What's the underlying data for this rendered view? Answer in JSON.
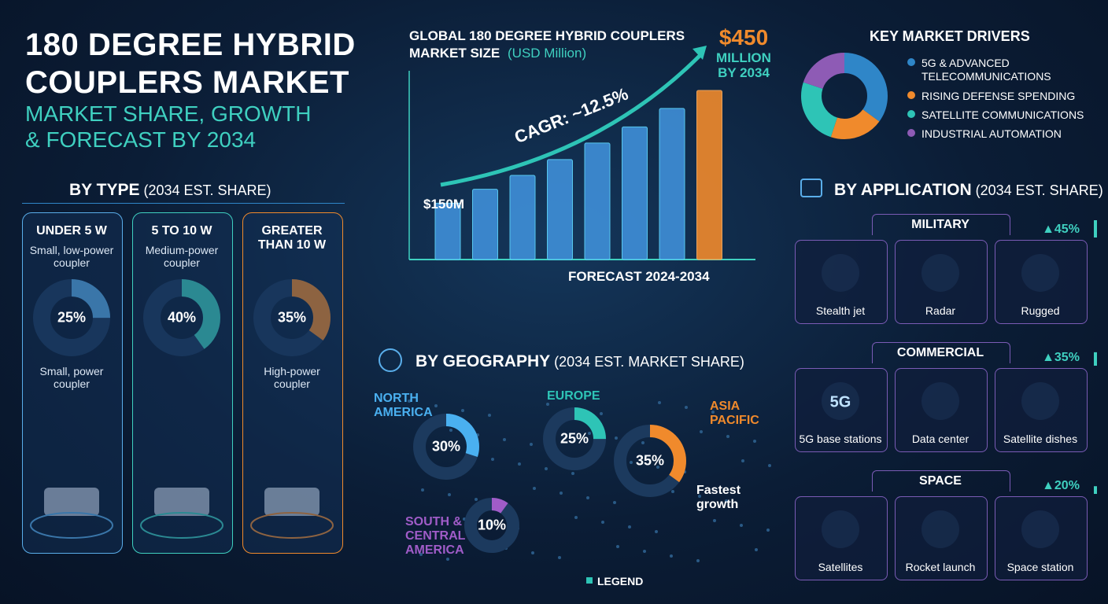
{
  "header": {
    "title_lines": [
      "180 DEGREE HYBRID",
      "COUPLERS MARKET"
    ],
    "subtitle_lines": [
      "MARKET SHARE, GROWTH",
      "& FORECAST BY 2034"
    ]
  },
  "market_size": {
    "title_lines": [
      "GLOBAL 180 DEGREE HYBRID COUPLERS",
      "MARKET SIZE"
    ],
    "unit": "(USD Million)",
    "cagr": "CAGR: ~12.5%",
    "start_label": "$150M",
    "end_label_lines": [
      "$450",
      "MILLION",
      "BY 2034"
    ],
    "forecast": "FORECAST 2024-2034",
    "values": [
      150,
      187,
      224,
      266,
      310,
      353,
      402,
      450
    ],
    "color": "#3f8fd8",
    "end_color": "#f08a2c"
  },
  "drivers": {
    "title": "KEY MARKET DRIVERS",
    "items": [
      {
        "label_lines": [
          "5G & ADVANCED",
          "TELECOMMUNICATIONS"
        ],
        "value": 35,
        "color": "#2f86c8"
      },
      {
        "label_lines": [
          "RISING DEFENSE SPENDING"
        ],
        "value": 20,
        "color": "#f08a2c"
      },
      {
        "label_lines": [
          "SATELLITE COMMUNICATIONS"
        ],
        "value": 25,
        "color": "#2ec4b6"
      },
      {
        "label_lines": [
          "INDUSTRIAL AUTOMATION"
        ],
        "value": 20,
        "color": "#8e5bb5"
      }
    ]
  },
  "by_type": {
    "title": "BY TYPE",
    "note": "(2034 EST. SHARE)",
    "cards": [
      {
        "name": "UNDER 5 W",
        "description": "Small, low-power coupler",
        "value": 25,
        "value_label": "25%",
        "caption": "Small, power coupler",
        "color": "#5aaeea"
      },
      {
        "name": "5 TO 10 W",
        "description": "Medium-power coupler",
        "value": 40,
        "value_label": "40%",
        "color": "#3fd0c0"
      },
      {
        "name": "GREATER THAN 10 W",
        "value": 35,
        "value_label": "35%",
        "caption": "High-power coupler",
        "color": "#f08a2c"
      }
    ]
  },
  "by_geography": {
    "title": "BY GEOGRAPHY",
    "note": "(2034 EST. MARKET SHARE)",
    "legend": "LEGEND",
    "regions": [
      {
        "name": "NORTH AMERICA",
        "value": 30,
        "value_label": "30%",
        "color": "#4ab0f0"
      },
      {
        "name": "EUROPE",
        "value": 25,
        "value_label": "25%",
        "color": "#2ec4b6"
      },
      {
        "name": "ASIA PACIFIC",
        "value": 35,
        "value_label": "35%",
        "color": "#f08a2c",
        "note": "Fastest growth"
      },
      {
        "name": "SOUTH & CENTRAL AMERICA",
        "value": 10,
        "value_label": "10%",
        "color": "#a05cc8"
      }
    ]
  },
  "by_application": {
    "title": "BY APPLICATION",
    "note": "(2034 EST. SHARE)",
    "groups": [
      {
        "name": "MILITARY",
        "value": 45,
        "value_label": "▲45%",
        "items": [
          {
            "label": "Stealth jet"
          },
          {
            "label": "Radar"
          },
          {
            "label": "Rugged"
          }
        ]
      },
      {
        "name": "COMMERCIAL",
        "value": 35,
        "value_label": "▲35%",
        "items": [
          {
            "label": "5G base stations",
            "icon_text": "5G"
          },
          {
            "label": "Data center"
          },
          {
            "label": "Satellite dishes"
          }
        ]
      },
      {
        "name": "SPACE",
        "value": 20,
        "value_label": "▲20%",
        "items": [
          {
            "label": "Satellites"
          },
          {
            "label": "Rocket launch"
          },
          {
            "label": "Space station"
          }
        ]
      }
    ]
  }
}
